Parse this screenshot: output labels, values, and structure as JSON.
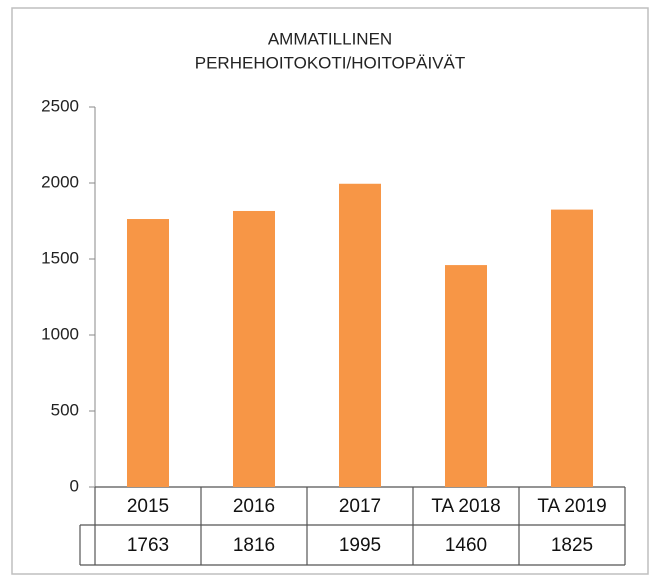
{
  "chart_data": {
    "type": "bar",
    "title": [
      "AMMATILLINEN",
      "PERHEHOITOKOTI/HOITOPÄIVÄT"
    ],
    "categories": [
      "2015",
      "2016",
      "2017",
      "TA 2018",
      "TA 2019"
    ],
    "values": [
      1763,
      1816,
      1995,
      1460,
      1825
    ],
    "color": "#f79646",
    "ylim": [
      0,
      2500
    ],
    "yticks": [
      0,
      500,
      1000,
      1500,
      2000,
      2500
    ],
    "grid": false,
    "data_table": true
  }
}
